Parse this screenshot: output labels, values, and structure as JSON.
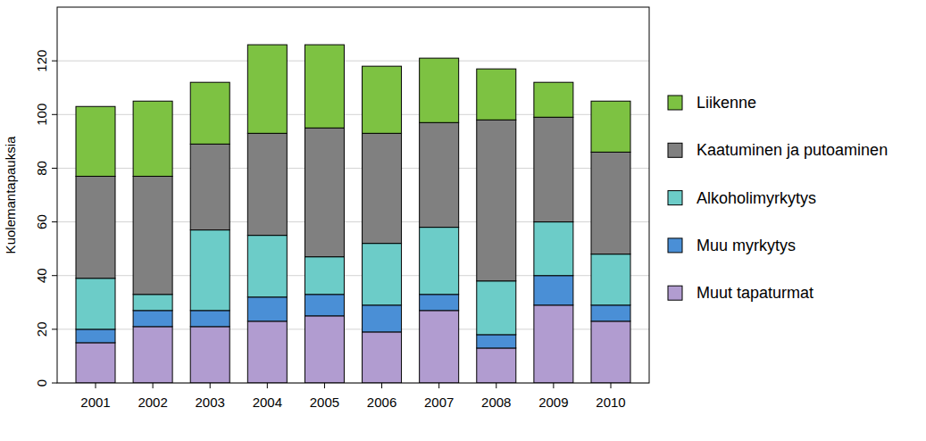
{
  "chart_data": {
    "type": "bar",
    "stacked": true,
    "grid": true,
    "legend": "right",
    "y_label": "Kuolemantapauksia",
    "categories": [
      "2001",
      "2002",
      "2003",
      "2004",
      "2005",
      "2006",
      "2007",
      "2008",
      "2009",
      "2010"
    ],
    "ylim": [
      0,
      140
    ],
    "yticks": [
      0,
      20,
      40,
      60,
      80,
      100,
      120
    ],
    "series": [
      {
        "name": "Muut tapaturmat",
        "color": "#b19cd0",
        "values": [
          15,
          21,
          21,
          23,
          25,
          19,
          27,
          13,
          29,
          23
        ]
      },
      {
        "name": "Muu myrkytys",
        "color": "#4a8fd6",
        "values": [
          5,
          6,
          6,
          9,
          8,
          10,
          6,
          5,
          11,
          6
        ]
      },
      {
        "name": "Alkoholimyrkytys",
        "color": "#6cccc8",
        "values": [
          19,
          6,
          30,
          23,
          14,
          23,
          25,
          20,
          20,
          19
        ]
      },
      {
        "name": "Kaatuminen ja putoaminen",
        "color": "#808080",
        "values": [
          38,
          44,
          32,
          38,
          48,
          41,
          39,
          60,
          39,
          38
        ]
      },
      {
        "name": "Liikenne",
        "color": "#7dc242",
        "values": [
          26,
          28,
          23,
          33,
          31,
          25,
          24,
          19,
          13,
          19
        ]
      }
    ]
  }
}
